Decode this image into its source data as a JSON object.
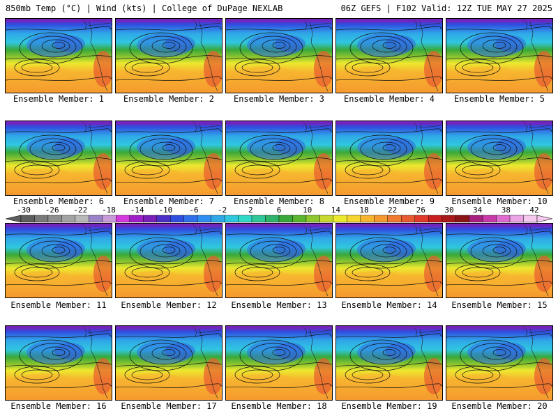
{
  "header": {
    "left_title": "850mb Temp (°C) | Wind (kts) | College of DuPage NEXLAB",
    "right_title": "06Z GEFS | F102 Valid: 12Z TUE MAY 27 2025"
  },
  "panels": [
    {
      "label": "Ensemble Member: 1"
    },
    {
      "label": "Ensemble Member: 2"
    },
    {
      "label": "Ensemble Member: 3"
    },
    {
      "label": "Ensemble Member: 4"
    },
    {
      "label": "Ensemble Member: 5"
    },
    {
      "label": "Ensemble Member: 6"
    },
    {
      "label": "Ensemble Member: 7"
    },
    {
      "label": "Ensemble Member: 8"
    },
    {
      "label": "Ensemble Member: 9"
    },
    {
      "label": "Ensemble Member: 10"
    },
    {
      "label": "Ensemble Member: 11"
    },
    {
      "label": "Ensemble Member: 12"
    },
    {
      "label": "Ensemble Member: 13"
    },
    {
      "label": "Ensemble Member: 14"
    },
    {
      "label": "Ensemble Member: 15"
    },
    {
      "label": "Ensemble Member: 16"
    },
    {
      "label": "Ensemble Member: 17"
    },
    {
      "label": "Ensemble Member: 18"
    },
    {
      "label": "Ensemble Member: 19"
    },
    {
      "label": "Ensemble Member: 20"
    }
  ],
  "colorbar": {
    "tick_labels": [
      "-30",
      "-26",
      "-22",
      "-18",
      "-14",
      "-10",
      "-6",
      "-2",
      "2",
      "6",
      "10",
      "14",
      "18",
      "22",
      "26",
      "30",
      "34",
      "38",
      "42"
    ],
    "colors": [
      "#5e5e5e",
      "#7a7a7a",
      "#8f8f8f",
      "#a3a3a3",
      "#b9b9b9",
      "#9a83c9",
      "#c79ad8",
      "#d53adf",
      "#a020c8",
      "#7a1fb8",
      "#4b2fc7",
      "#2f4fe0",
      "#2f6fe8",
      "#2f8ff0",
      "#30a8e8",
      "#2fc7e0",
      "#2fd8c7",
      "#2fc79a",
      "#2fb36a",
      "#39a83a",
      "#5bb52f",
      "#8fc72f",
      "#c7d82f",
      "#ece92f",
      "#f5d52f",
      "#f7b52f",
      "#f59a2f",
      "#f07a2f",
      "#e85a2f",
      "#df3a2a",
      "#c8201f",
      "#a81a1a",
      "#8a1616",
      "#a8207f",
      "#c83aa8",
      "#df6ad0",
      "#eea2e6",
      "#f5c8f0"
    ]
  }
}
